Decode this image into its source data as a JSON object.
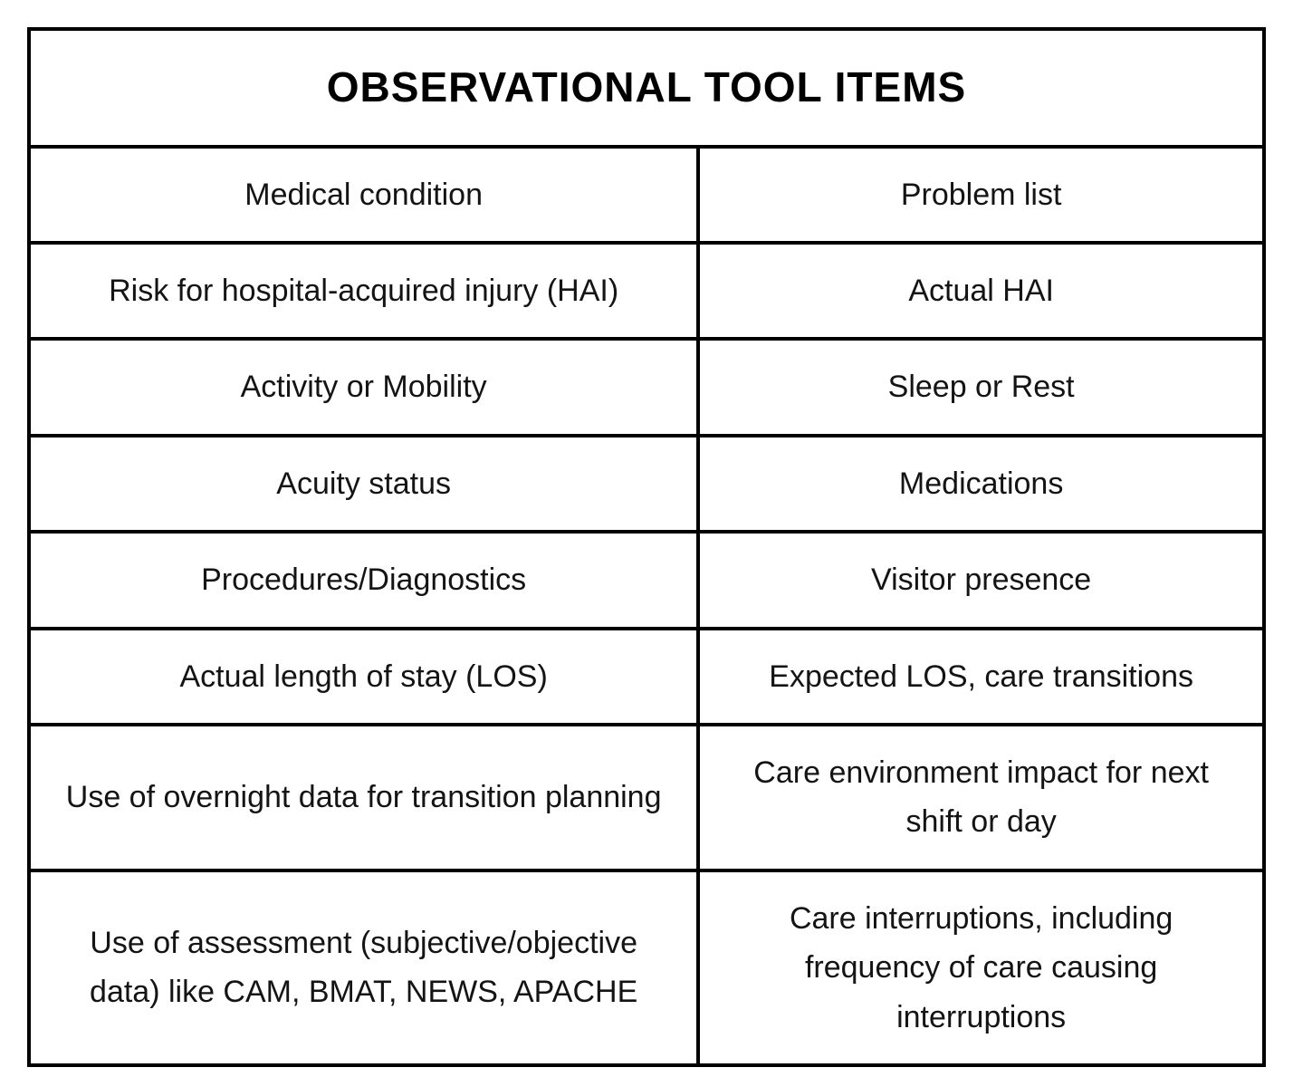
{
  "table": {
    "title": "OBSERVATIONAL TOOL ITEMS",
    "rows": [
      {
        "left": "Medical condition",
        "right": "Problem list"
      },
      {
        "left": "Risk for hospital-acquired injury (HAI)",
        "right": "Actual HAI"
      },
      {
        "left": "Activity or Mobility",
        "right": "Sleep or Rest"
      },
      {
        "left": "Acuity status",
        "right": "Medications"
      },
      {
        "left": "Procedures/Diagnostics",
        "right": "Visitor presence"
      },
      {
        "left": "Actual length of stay (LOS)",
        "right": "Expected LOS, care transitions"
      },
      {
        "left": "Use of overnight data for transition planning",
        "right": "Care environment impact for next shift or day"
      },
      {
        "left": "Use of assessment (subjective/objective data) like CAM, BMAT, NEWS, APACHE",
        "right": "Care interruptions, including frequency of care causing interruptions"
      }
    ],
    "colors": {
      "border": "#000000",
      "text": "#141414",
      "background": "#ffffff"
    }
  }
}
